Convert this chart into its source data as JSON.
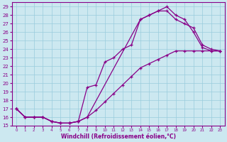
{
  "xlabel": "Windchill (Refroidissement éolien,°C)",
  "bg_color": "#cce8f0",
  "line_color": "#880088",
  "grid_color": "#99ccdd",
  "xlim": [
    -0.5,
    23.5
  ],
  "ylim": [
    15,
    29.5
  ],
  "xticks": [
    0,
    1,
    2,
    3,
    4,
    5,
    6,
    7,
    8,
    9,
    10,
    11,
    12,
    13,
    14,
    15,
    16,
    17,
    18,
    19,
    20,
    21,
    22,
    23
  ],
  "yticks": [
    15,
    16,
    17,
    18,
    19,
    20,
    21,
    22,
    23,
    24,
    25,
    26,
    27,
    28,
    29
  ],
  "line1_x": [
    0,
    1,
    2,
    3,
    4,
    5,
    6,
    7,
    8,
    9,
    10,
    11,
    12,
    13,
    14,
    15,
    16,
    17,
    18,
    19,
    20,
    21,
    22,
    23
  ],
  "line1_y": [
    17.0,
    16.0,
    16.0,
    16.0,
    15.5,
    15.3,
    15.3,
    15.5,
    19.5,
    19.8,
    22.5,
    23.0,
    24.0,
    24.5,
    27.5,
    28.0,
    28.5,
    29.0,
    28.0,
    27.5,
    26.0,
    24.2,
    23.8,
    23.8
  ],
  "line2_x": [
    0,
    1,
    2,
    3,
    4,
    5,
    6,
    7,
    8,
    14,
    15,
    16,
    17,
    18,
    19,
    20,
    21,
    22,
    23
  ],
  "line2_y": [
    17.0,
    16.0,
    16.0,
    16.0,
    15.5,
    15.3,
    15.3,
    15.5,
    16.0,
    27.5,
    28.0,
    28.5,
    28.5,
    27.5,
    27.0,
    26.5,
    24.5,
    24.0,
    23.8
  ],
  "line3_x": [
    0,
    1,
    2,
    3,
    4,
    5,
    6,
    7,
    8,
    9,
    10,
    11,
    12,
    13,
    14,
    15,
    16,
    17,
    18,
    19,
    20,
    21,
    22,
    23
  ],
  "line3_y": [
    17.0,
    16.0,
    16.0,
    16.0,
    15.5,
    15.3,
    15.3,
    15.5,
    16.0,
    16.8,
    17.8,
    18.8,
    19.8,
    20.8,
    21.8,
    22.3,
    22.8,
    23.3,
    23.8,
    23.8,
    23.8,
    23.8,
    23.8,
    23.8
  ]
}
